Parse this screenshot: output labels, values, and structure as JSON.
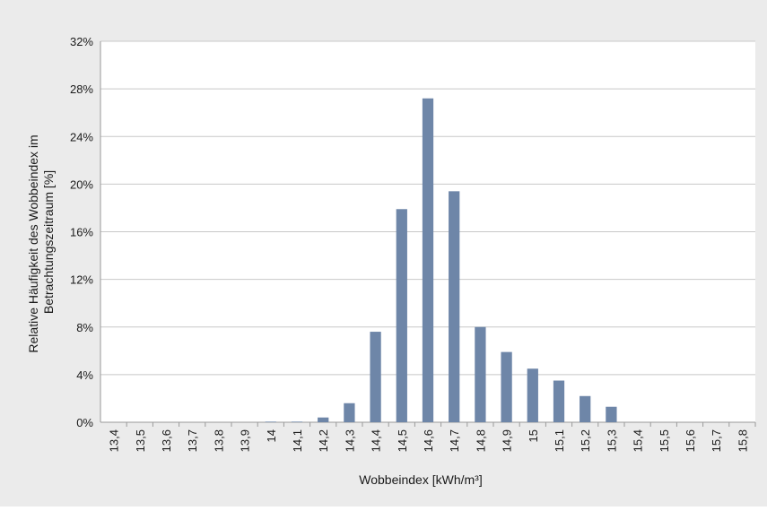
{
  "chart_data": {
    "type": "bar",
    "title": "",
    "xlabel": "Wobbeindex [kWh/m³]",
    "ylabel": [
      "Relative Häufigkeit des Wobbeindex im",
      "Betrachtungszeitraum [%]"
    ],
    "categories": [
      "13,4",
      "13,5",
      "13,6",
      "13,7",
      "13,8",
      "13,9",
      "14",
      "14,1",
      "14,2",
      "14,3",
      "14,4",
      "14,5",
      "14,6",
      "14,7",
      "14,8",
      "14,9",
      "15",
      "15,1",
      "15,2",
      "15,3",
      "15,4",
      "15,5",
      "15,6",
      "15,7",
      "15,8"
    ],
    "values": [
      0,
      0,
      0,
      0,
      0,
      0,
      0.05,
      0.05,
      0.4,
      1.6,
      7.6,
      17.9,
      27.2,
      19.4,
      8.0,
      5.9,
      4.5,
      3.5,
      2.2,
      1.3,
      0,
      0,
      0,
      0,
      0
    ],
    "ylim": [
      0,
      32
    ],
    "yticks": [
      0,
      4,
      8,
      12,
      16,
      20,
      24,
      28,
      32
    ],
    "ytick_labels": [
      "0%",
      "4%",
      "8%",
      "12%",
      "16%",
      "20%",
      "24%",
      "28%",
      "32%"
    ],
    "grid": "horizontal",
    "legend": "none",
    "bar_color": "#6e86a8",
    "plot_background": "#ffffff",
    "figure_background": "#ebebeb",
    "grid_color": "#c8c8c8"
  }
}
